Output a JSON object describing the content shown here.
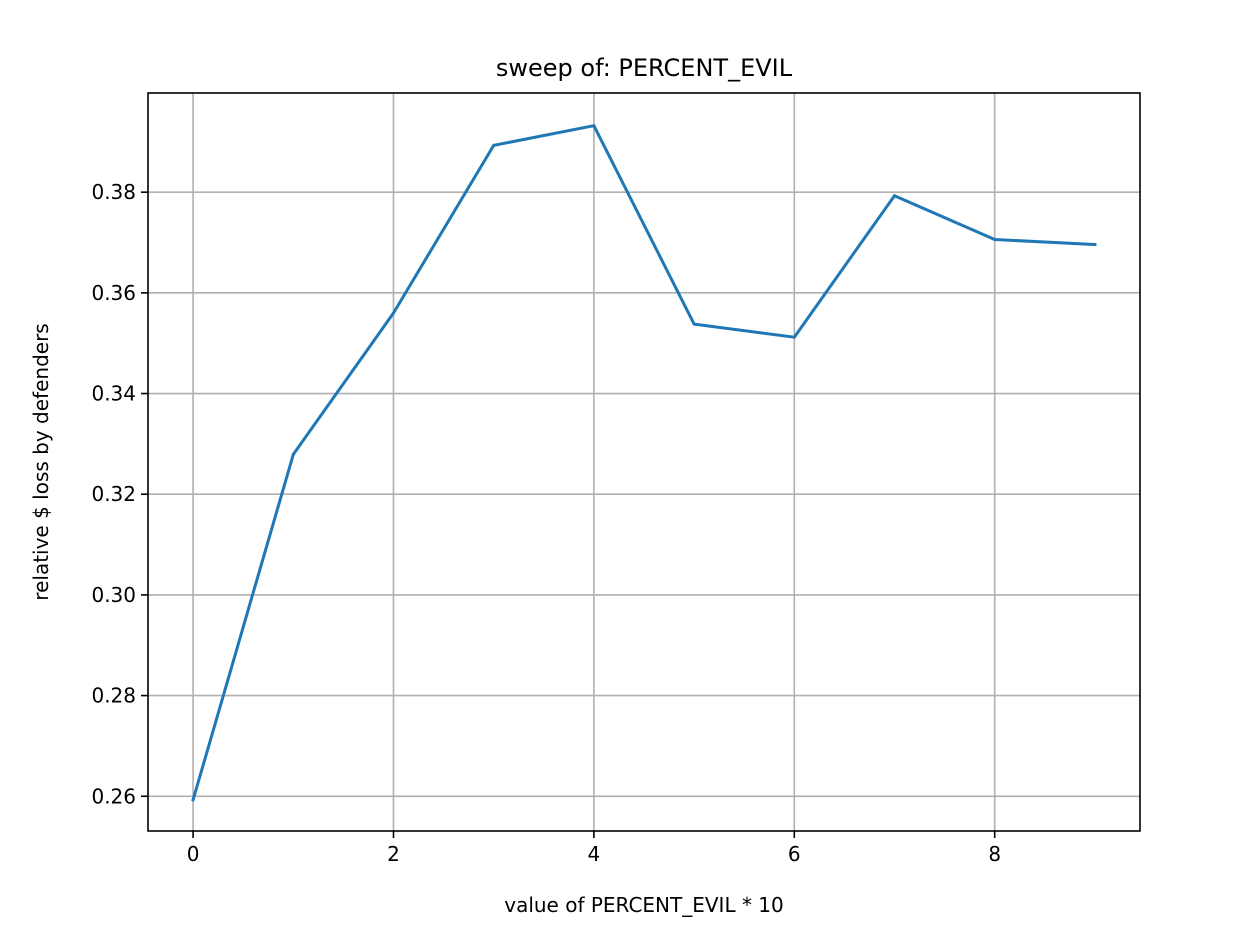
{
  "chart_data": {
    "type": "line",
    "title": "sweep of: PERCENT_EVIL",
    "xlabel": "value of PERCENT_EVIL * 10",
    "ylabel": "relative $ loss by defenders",
    "xlim": [
      -0.45,
      9.45
    ],
    "ylim": [
      0.2531,
      0.3997
    ],
    "xticks": [
      0,
      2,
      4,
      6,
      8
    ],
    "xtick_labels": [
      "0",
      "2",
      "4",
      "6",
      "8"
    ],
    "yticks": [
      0.26,
      0.28,
      0.3,
      0.32,
      0.34,
      0.36,
      0.38
    ],
    "ytick_labels": [
      "0.26",
      "0.28",
      "0.30",
      "0.32",
      "0.34",
      "0.36",
      "0.38"
    ],
    "grid": true,
    "series": [
      {
        "x": [
          0,
          1,
          2,
          3,
          4,
          5,
          6,
          7,
          8,
          9
        ],
        "values": [
          0.2593,
          0.3279,
          0.356,
          0.3893,
          0.3932,
          0.3538,
          0.3512,
          0.3793,
          0.3706,
          0.3696
        ],
        "color": "#1f77b4"
      }
    ]
  }
}
